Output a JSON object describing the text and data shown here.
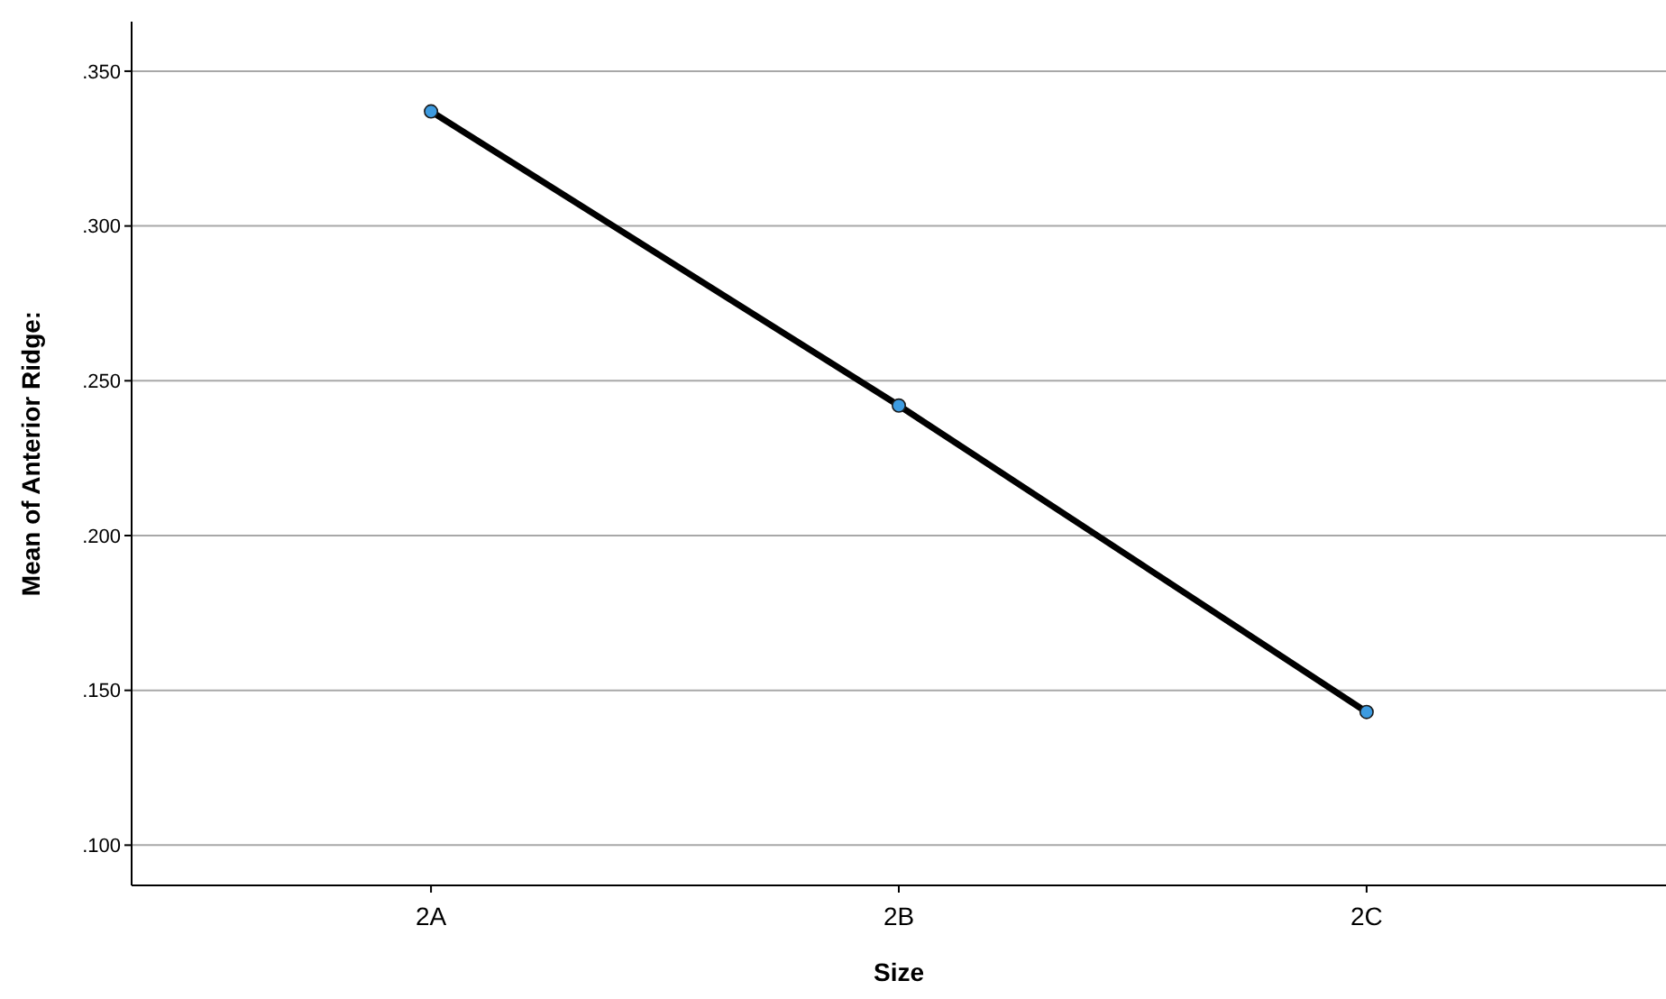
{
  "chart_data": {
    "type": "line",
    "xlabel": "Size",
    "ylabel": "Mean of Anterior Ridge:",
    "categories": [
      "2A",
      "2B",
      "2C"
    ],
    "series": [
      {
        "color": "#000000",
        "colors": [
          "#3d9be0",
          "#3d9be0",
          "#3d9be0"
        ],
        "values": [
          0.337,
          0.242,
          0.143
        ]
      }
    ],
    "ylim": [
      0.087,
      0.366
    ],
    "yticks": [
      {
        "value": 0.1,
        "label": ".100"
      },
      {
        "value": 0.15,
        "label": ".150"
      },
      {
        "value": 0.2,
        "label": ".200"
      },
      {
        "value": 0.25,
        "label": ".250"
      },
      {
        "value": 0.3,
        "label": ".300"
      },
      {
        "value": 0.35,
        "label": ".350"
      }
    ],
    "grid": "y",
    "marker": "circle",
    "line_style": "solid"
  }
}
